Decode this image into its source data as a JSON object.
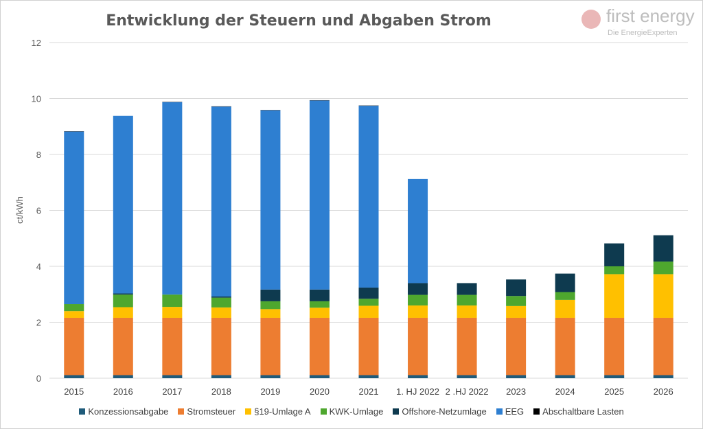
{
  "chart_data": {
    "type": "bar",
    "stacked": true,
    "title": "Entwicklung der Steuern und Abgaben Strom",
    "xlabel": "",
    "ylabel": "ct/kWh",
    "ylim": [
      0,
      12
    ],
    "yticks": [
      0,
      2,
      4,
      6,
      8,
      10,
      12
    ],
    "grid": true,
    "legend_position": "bottom",
    "categories": [
      "2015",
      "2016",
      "2017",
      "2018",
      "2019",
      "2020",
      "2021",
      "1. HJ 2022",
      "2 .HJ 2022",
      "2023",
      "2024",
      "2025",
      "2026"
    ],
    "series": [
      {
        "name": "Konzessionsabgabe",
        "color": "#1f5b7a",
        "values": [
          0.11,
          0.11,
          0.11,
          0.11,
          0.11,
          0.11,
          0.11,
          0.11,
          0.11,
          0.11,
          0.11,
          0.11,
          0.11
        ]
      },
      {
        "name": "Stromsteuer",
        "color": "#ed7d31",
        "values": [
          2.05,
          2.05,
          2.05,
          2.05,
          2.05,
          2.05,
          2.05,
          2.05,
          2.05,
          2.05,
          2.05,
          2.05,
          2.05
        ]
      },
      {
        "name": "§19-Umlage A",
        "color": "#ffc000",
        "values": [
          0.24,
          0.38,
          0.39,
          0.37,
          0.31,
          0.36,
          0.43,
          0.44,
          0.44,
          0.42,
          0.64,
          1.56,
          1.56
        ]
      },
      {
        "name": "KWK-Umlage",
        "color": "#4ea72e",
        "values": [
          0.25,
          0.45,
          0.44,
          0.35,
          0.28,
          0.23,
          0.25,
          0.38,
          0.38,
          0.36,
          0.28,
          0.28,
          0.45
        ]
      },
      {
        "name": "Offshore-Netzumlage",
        "color": "#0e3a4f",
        "values": [
          0,
          0.04,
          0,
          0.04,
          0.42,
          0.42,
          0.4,
          0.42,
          0.42,
          0.59,
          0.66,
          0.82,
          0.94
        ]
      },
      {
        "name": "EEG",
        "color": "#2e7fd1",
        "values": [
          6.17,
          6.35,
          6.88,
          6.79,
          6.41,
          6.76,
          6.5,
          3.72,
          0,
          0,
          0,
          0,
          0
        ]
      },
      {
        "name": "Abschaltbare Lasten",
        "color": "#000000",
        "values": [
          0.01,
          0,
          0.01,
          0.01,
          0.01,
          0.01,
          0.01,
          0,
          0,
          0,
          0,
          0,
          0
        ]
      }
    ]
  },
  "logo": {
    "name": "first energy",
    "tagline": "Die EnergieExperten"
  }
}
